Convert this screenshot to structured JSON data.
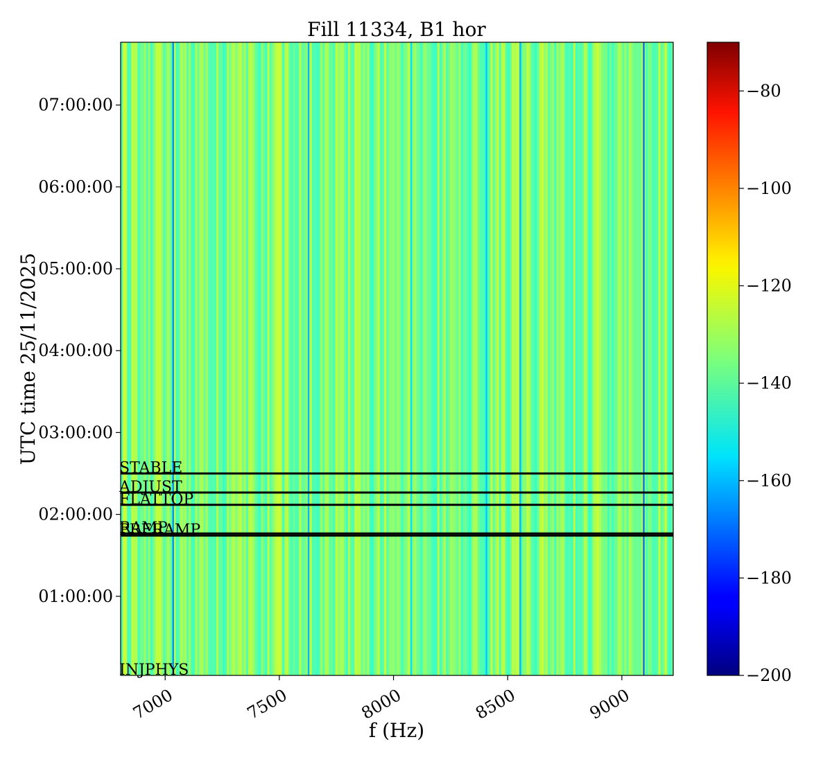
{
  "chart_data": {
    "type": "heatmap",
    "title": "Fill 11334, B1 hor",
    "xlabel": "f (Hz)",
    "ylabel": "UTC time 25/11/2025",
    "xlim": [
      6805,
      9225
    ],
    "x_ticks": [
      {
        "value": 7000,
        "label": "7000"
      },
      {
        "value": 7500,
        "label": "7500"
      },
      {
        "value": 8000,
        "label": "8000"
      },
      {
        "value": 8500,
        "label": "8500"
      },
      {
        "value": 9000,
        "label": "9000"
      }
    ],
    "ylim": [
      "00:02:00",
      "07:46:00"
    ],
    "y_ticks": [
      {
        "value": "01:00:00",
        "label": "01:00:00"
      },
      {
        "value": "02:00:00",
        "label": "02:00:00"
      },
      {
        "value": "03:00:00",
        "label": "03:00:00"
      },
      {
        "value": "04:00:00",
        "label": "04:00:00"
      },
      {
        "value": "05:00:00",
        "label": "05:00:00"
      },
      {
        "value": "06:00:00",
        "label": "06:00:00"
      },
      {
        "value": "07:00:00",
        "label": "07:00:00"
      }
    ],
    "colormap": "jet",
    "colorbar": {
      "range": [
        -200,
        -70
      ],
      "ticks": [
        {
          "value": -80,
          "label": "−80"
        },
        {
          "value": -100,
          "label": "−100"
        },
        {
          "value": -120,
          "label": "−120"
        },
        {
          "value": -140,
          "label": "−140"
        },
        {
          "value": -160,
          "label": "−160"
        },
        {
          "value": -180,
          "label": "−180"
        },
        {
          "value": -200,
          "label": "−200"
        }
      ]
    },
    "grid": false,
    "baseline_level": -137,
    "column_level_range": [
      -145,
      -125
    ],
    "strong_lines": [
      {
        "f": 7035,
        "level": -165
      },
      {
        "f": 7628,
        "level": -160
      },
      {
        "f": 8078,
        "level": -155
      },
      {
        "f": 8407,
        "level": -158
      },
      {
        "f": 8555,
        "level": -160
      },
      {
        "f": 9096,
        "level": -170
      }
    ],
    "beam_modes": [
      {
        "label": "STABLE",
        "time": "02:30:00"
      },
      {
        "label": "ADJUST",
        "time": "02:16:00"
      },
      {
        "label": "FLATTOP",
        "time": "02:07:00"
      },
      {
        "label": "RAMP",
        "time": "01:46:00"
      },
      {
        "label": "PRERAMP",
        "time": "01:44:30"
      },
      {
        "label": "INJPHYS",
        "time": "00:02:00"
      }
    ]
  }
}
